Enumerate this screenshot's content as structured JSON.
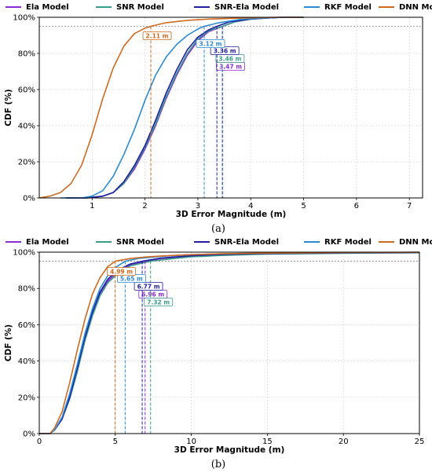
{
  "chart_data": [
    {
      "type": "line",
      "panel_label": "(a)",
      "xlabel": "3D Error Magnitude (m)",
      "ylabel": "CDF (%)",
      "xlim": [
        0,
        7.25
      ],
      "ylim": [
        0,
        100
      ],
      "xticks": [
        "1",
        "2",
        "3",
        "4",
        "5",
        "6",
        "7"
      ],
      "yticks": [
        "0%",
        "20%",
        "40%",
        "60%",
        "80%",
        "100%"
      ],
      "grid": true,
      "legend": "top",
      "reference_line_y": 95,
      "series": [
        {
          "name": "Ela Model",
          "color": "#8c2bd6",
          "marker_x": 3.47,
          "marker_label": "3.47 m",
          "x": [
            0.5,
            0.9,
            1.2,
            1.4,
            1.6,
            1.8,
            2.0,
            2.2,
            2.4,
            2.6,
            2.8,
            3.0,
            3.2,
            3.47,
            3.7,
            4.0,
            4.3,
            4.6,
            5.0
          ],
          "y": [
            0,
            0,
            1,
            3,
            8,
            16,
            27,
            40,
            55,
            68,
            79,
            87,
            92,
            95,
            97.5,
            99,
            99.6,
            100,
            100
          ]
        },
        {
          "name": "SNR Model",
          "color": "#3a9e8c",
          "marker_x": 3.46,
          "marker_label": "3.46 m",
          "x": [
            0.5,
            0.9,
            1.2,
            1.4,
            1.6,
            1.8,
            2.0,
            2.2,
            2.4,
            2.6,
            2.8,
            3.0,
            3.2,
            3.46,
            3.7,
            4.0,
            4.3,
            4.6,
            5.0
          ],
          "y": [
            0,
            0,
            1,
            3,
            8,
            17,
            28,
            41,
            56,
            69,
            80,
            88,
            92.5,
            95,
            97.5,
            99,
            99.6,
            100,
            100
          ]
        },
        {
          "name": "SNR-Ela Model",
          "color": "#1f1fa0",
          "marker_x": 3.36,
          "marker_label": "3.36 m",
          "x": [
            0.5,
            0.9,
            1.2,
            1.4,
            1.6,
            1.8,
            2.0,
            2.2,
            2.4,
            2.6,
            2.8,
            3.0,
            3.2,
            3.36,
            3.6,
            4.0,
            4.3,
            4.6,
            5.0
          ],
          "y": [
            0,
            0,
            1,
            3,
            9,
            18,
            29,
            43,
            58,
            71,
            82,
            89,
            93,
            95,
            97.5,
            99,
            99.6,
            100,
            100
          ]
        },
        {
          "name": "RKF Model",
          "color": "#2a8ad4",
          "marker_x": 3.12,
          "marker_label": "3.12 m",
          "x": [
            0.4,
            0.8,
            1.0,
            1.2,
            1.4,
            1.6,
            1.8,
            2.0,
            2.2,
            2.4,
            2.6,
            2.8,
            3.0,
            3.12,
            3.4,
            3.8,
            4.2,
            4.6,
            5.0
          ],
          "y": [
            0,
            0,
            1,
            4,
            12,
            24,
            38,
            54,
            68,
            78,
            85,
            90,
            93.5,
            95,
            97,
            98.8,
            99.5,
            100,
            100
          ]
        },
        {
          "name": "DNN Model",
          "color": "#cf6a1f",
          "marker_x": 2.11,
          "marker_label": "2.11 m",
          "x": [
            0.0,
            0.2,
            0.4,
            0.6,
            0.8,
            1.0,
            1.2,
            1.4,
            1.6,
            1.8,
            2.0,
            2.11,
            2.4,
            2.8,
            3.2,
            3.6,
            4.0,
            4.5,
            5.0
          ],
          "y": [
            0,
            1,
            3,
            8,
            18,
            35,
            55,
            72,
            84,
            91,
            94,
            95,
            97,
            98.3,
            99,
            99.4,
            99.7,
            100,
            100
          ]
        }
      ]
    },
    {
      "type": "line",
      "panel_label": "(b)",
      "xlabel": "3D Error Magnitude (m)",
      "ylabel": "CDF (%)",
      "xlim": [
        0,
        25
      ],
      "ylim": [
        0,
        100
      ],
      "xticks": [
        "0",
        "5",
        "10",
        "15",
        "20",
        "25"
      ],
      "yticks": [
        "0%",
        "20%",
        "40%",
        "60%",
        "80%",
        "100%"
      ],
      "grid": true,
      "legend": "top",
      "reference_line_y": 95,
      "series": [
        {
          "name": "Ela Model",
          "color": "#8c2bd6",
          "marker_x": 6.96,
          "marker_label": "6.96 m",
          "x": [
            0,
            0.7,
            1.0,
            1.5,
            2.0,
            2.5,
            3.0,
            3.5,
            4.0,
            4.5,
            5.0,
            5.5,
            6.0,
            6.96,
            8.0,
            10,
            12,
            15,
            20,
            25
          ],
          "y": [
            0,
            0,
            2,
            8,
            20,
            35,
            52,
            66,
            77,
            84,
            88,
            91,
            93,
            95,
            96.5,
            97.8,
            98.5,
            99.1,
            99.5,
            99.7
          ]
        },
        {
          "name": "SNR Model",
          "color": "#3a9e8c",
          "marker_x": 7.32,
          "marker_label": "7.32 m",
          "x": [
            0,
            0.7,
            1.0,
            1.5,
            2.0,
            2.5,
            3.0,
            3.5,
            4.0,
            4.5,
            5.0,
            5.5,
            6.0,
            7.32,
            8.5,
            10,
            12,
            15,
            20,
            25
          ],
          "y": [
            0,
            0,
            2,
            8,
            19,
            34,
            51,
            65,
            76,
            83,
            87,
            90,
            92.5,
            95,
            96.2,
            97.4,
            98.2,
            98.9,
            99.4,
            99.7
          ]
        },
        {
          "name": "SNR-Ela Model",
          "color": "#1f1fa0",
          "marker_x": 6.77,
          "marker_label": "6.77 m",
          "x": [
            0,
            0.7,
            1.0,
            1.5,
            2.0,
            2.5,
            3.0,
            3.5,
            4.0,
            4.5,
            5.0,
            5.5,
            6.0,
            6.77,
            8.0,
            10,
            12,
            15,
            20,
            25
          ],
          "y": [
            0,
            0,
            2,
            8,
            20,
            36,
            53,
            67,
            78,
            85,
            89,
            91.5,
            93.5,
            95,
            96.7,
            98,
            98.7,
            99.2,
            99.6,
            99.8
          ]
        },
        {
          "name": "RKF Model",
          "color": "#2a8ad4",
          "marker_x": 5.65,
          "marker_label": "5.65 m",
          "x": [
            0,
            0.7,
            1.0,
            1.5,
            2.0,
            2.5,
            3.0,
            3.5,
            4.0,
            4.5,
            5.0,
            5.65,
            6.5,
            8.0,
            10,
            12,
            15,
            20,
            25
          ],
          "y": [
            0,
            0,
            2,
            9,
            22,
            38,
            55,
            69,
            80,
            87,
            91.5,
            95,
            96.5,
            97.7,
            98.6,
            99.1,
            99.5,
            99.8,
            99.9
          ]
        },
        {
          "name": "DNN Model",
          "color": "#cf6a1f",
          "marker_x": 4.99,
          "marker_label": "4.99 m",
          "x": [
            0,
            0.7,
            1.0,
            1.5,
            2.0,
            2.5,
            3.0,
            3.5,
            4.0,
            4.5,
            4.99,
            6.0,
            7.0,
            8.0,
            10,
            12,
            15,
            20,
            25
          ],
          "y": [
            0,
            0,
            3,
            12,
            28,
            46,
            63,
            77,
            86,
            92,
            95,
            96.5,
            97.3,
            97.9,
            98.6,
            99.1,
            99.5,
            99.8,
            99.9
          ]
        }
      ]
    }
  ]
}
